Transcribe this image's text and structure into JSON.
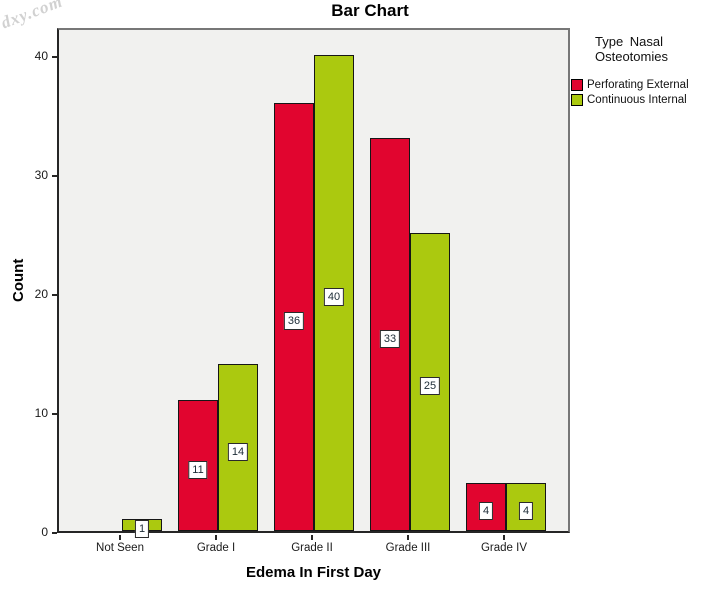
{
  "watermark": {
    "text": "dxy.com"
  },
  "chart": {
    "title": "Bar Chart",
    "xlabel": "Edema In First Day",
    "ylabel": "Count"
  },
  "legend": {
    "title_line1": "Type Nasal",
    "title_line2": "Osteotomies"
  },
  "chart_data": {
    "type": "bar",
    "title": "Bar Chart",
    "xlabel": "Edema In First Day",
    "ylabel": "Count",
    "categories": [
      "Not Seen",
      "Grade I",
      "Grade II",
      "Grade III",
      "Grade IV"
    ],
    "series": [
      {
        "name": "Perforating External",
        "color": "#e1052f",
        "values": [
          0,
          11,
          36,
          33,
          4
        ]
      },
      {
        "name": "Continuous Internal",
        "color": "#abc90f",
        "values": [
          1,
          14,
          40,
          25,
          4
        ]
      }
    ],
    "yticks": [
      0,
      10,
      20,
      30,
      40
    ],
    "ylim": [
      0,
      42.4
    ],
    "grid": false,
    "bar_labels": true,
    "legend_title": "Type Nasal Osteotomies",
    "legend_position": "top-right",
    "plot_bg": "#f1f1ef",
    "bar_border_color": "#161616"
  }
}
